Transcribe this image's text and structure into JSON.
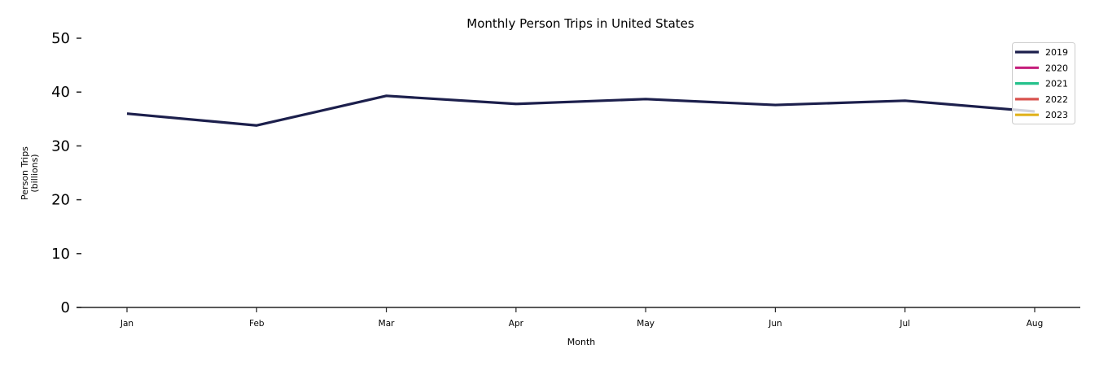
{
  "chart_data": {
    "type": "line",
    "title": "Monthly Person Trips in United States",
    "xlabel": "Month",
    "ylabel": "Person Trips\n(billions)",
    "ylabel_lines": [
      "Person Trips",
      "(billions)"
    ],
    "categories": [
      "Jan",
      "Feb",
      "Mar",
      "Apr",
      "May",
      "Jun",
      "Jul",
      "Aug"
    ],
    "ylim": [
      0,
      50
    ],
    "yticks": [
      0,
      10,
      20,
      30,
      40,
      50
    ],
    "grid": false,
    "legend_position": "upper right",
    "series": [
      {
        "name": "2019",
        "color": "#1c1f4c",
        "values": [
          36.0,
          33.8,
          39.3,
          37.8,
          38.7,
          37.6,
          38.4,
          36.4
        ]
      },
      {
        "name": "2020",
        "color": "#c51f7c",
        "values": []
      },
      {
        "name": "2021",
        "color": "#26c28c",
        "values": []
      },
      {
        "name": "2022",
        "color": "#d9534f",
        "values": []
      },
      {
        "name": "2023",
        "color": "#e0b21d",
        "values": []
      }
    ]
  }
}
